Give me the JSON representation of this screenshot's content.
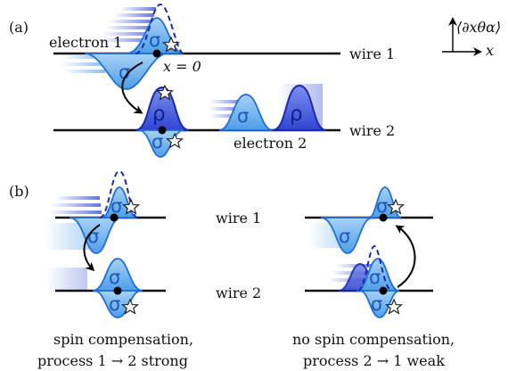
{
  "panel_a": {
    "tag": "(a)",
    "electron1": "electron 1",
    "electron2": "electron 2",
    "origin": "x = 0",
    "wire1": "wire 1",
    "wire2": "wire 2"
  },
  "panel_b": {
    "tag": "(b)",
    "wire1": "wire 1",
    "wire2": "wire 2",
    "left_caption": [
      "spin compensation,",
      "process 1 → 2 strong"
    ],
    "right_caption": [
      "no spin compensation,",
      "process 2 → 1 weak"
    ]
  },
  "axes_key": {
    "y_label": "⟨∂xθα⟩",
    "x_label": "x"
  },
  "glyphs": {
    "sigma": "σ",
    "rho": "ρ"
  },
  "colors": {
    "sigma_fill": "#6fb3f0",
    "sigma_stroke": "#1f6fd6",
    "rho_fill": "#3b53d6",
    "rho_stroke": "#1b2aa8",
    "wire": "#111111"
  }
}
